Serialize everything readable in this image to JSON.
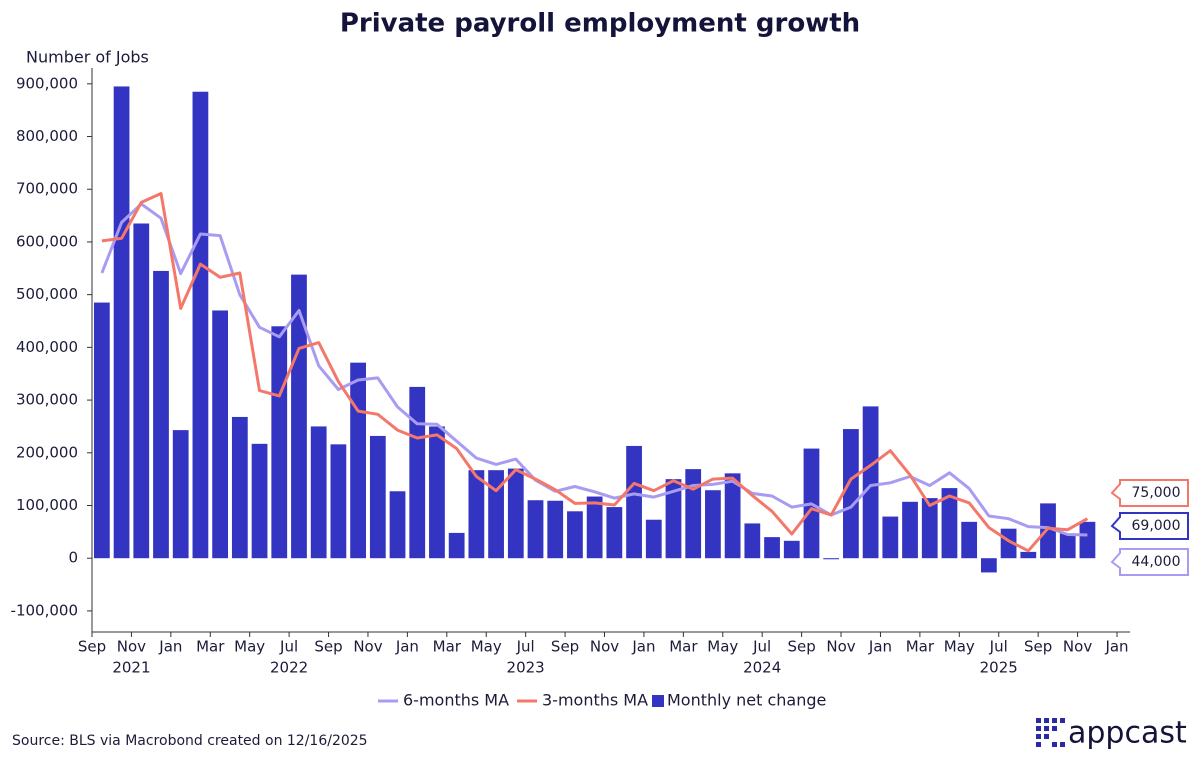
{
  "chart_data": {
    "type": "combo",
    "title": "Private payroll employment growth",
    "y_label": "Number of Jobs",
    "source": "Source: BLS via Macrobond created on 12/16/2025",
    "brand": "appcast",
    "x": [
      "2021-09",
      "2021-10",
      "2021-11",
      "2021-12",
      "2022-01",
      "2022-02",
      "2022-03",
      "2022-04",
      "2022-05",
      "2022-06",
      "2022-07",
      "2022-08",
      "2022-09",
      "2022-10",
      "2022-11",
      "2022-12",
      "2023-01",
      "2023-02",
      "2023-03",
      "2023-04",
      "2023-05",
      "2023-06",
      "2023-07",
      "2023-08",
      "2023-09",
      "2023-10",
      "2023-11",
      "2023-12",
      "2024-01",
      "2024-02",
      "2024-03",
      "2024-04",
      "2024-05",
      "2024-06",
      "2024-07",
      "2024-08",
      "2024-09",
      "2024-10",
      "2024-11",
      "2024-12",
      "2025-01",
      "2025-02",
      "2025-03",
      "2025-04",
      "2025-05",
      "2025-06",
      "2025-07",
      "2025-08",
      "2025-09",
      "2025-10",
      "2025-11"
    ],
    "xlim": [
      "2021-09",
      "2026-01"
    ],
    "xticks": [
      {
        "value": "2021-09",
        "label": "Sep"
      },
      {
        "value": "2021-11",
        "label": "Nov"
      },
      {
        "value": "2022-01",
        "label": "Jan"
      },
      {
        "value": "2022-03",
        "label": "Mar"
      },
      {
        "value": "2022-05",
        "label": "May"
      },
      {
        "value": "2022-07",
        "label": "Jul"
      },
      {
        "value": "2022-09",
        "label": "Sep"
      },
      {
        "value": "2022-11",
        "label": "Nov"
      },
      {
        "value": "2023-01",
        "label": "Jan"
      },
      {
        "value": "2023-03",
        "label": "Mar"
      },
      {
        "value": "2023-05",
        "label": "May"
      },
      {
        "value": "2023-07",
        "label": "Jul"
      },
      {
        "value": "2023-09",
        "label": "Sep"
      },
      {
        "value": "2023-11",
        "label": "Nov"
      },
      {
        "value": "2024-01",
        "label": "Jan"
      },
      {
        "value": "2024-03",
        "label": "Mar"
      },
      {
        "value": "2024-05",
        "label": "May"
      },
      {
        "value": "2024-07",
        "label": "Jul"
      },
      {
        "value": "2024-09",
        "label": "Sep"
      },
      {
        "value": "2024-11",
        "label": "Nov"
      },
      {
        "value": "2025-01",
        "label": "Jan"
      },
      {
        "value": "2025-03",
        "label": "Mar"
      },
      {
        "value": "2025-05",
        "label": "May"
      },
      {
        "value": "2025-07",
        "label": "Jul"
      },
      {
        "value": "2025-09",
        "label": "Sep"
      },
      {
        "value": "2025-11",
        "label": "Nov"
      },
      {
        "value": "2026-01",
        "label": "Jan"
      }
    ],
    "xtick_years": [
      {
        "value": "2021-11",
        "label": "2021"
      },
      {
        "value": "2022-07",
        "label": "2022"
      },
      {
        "value": "2023-07",
        "label": "2023"
      },
      {
        "value": "2024-07",
        "label": "2024"
      },
      {
        "value": "2025-07",
        "label": "2025"
      }
    ],
    "ylim": [
      -140000,
      930000
    ],
    "yticks": [
      {
        "value": -100000,
        "label": "-100,000"
      },
      0,
      {
        "value": 100000,
        "label": "100,000"
      },
      {
        "value": 200000,
        "label": "200,000"
      },
      {
        "value": 300000,
        "label": "300,000"
      },
      {
        "value": 400000,
        "label": "400,000"
      },
      {
        "value": 500000,
        "label": "500,000"
      },
      {
        "value": 600000,
        "label": "600,000"
      },
      {
        "value": 700000,
        "label": "700,000"
      },
      {
        "value": 800000,
        "label": "800,000"
      },
      {
        "value": 900000,
        "label": "900,000"
      }
    ],
    "grid": false,
    "series": [
      {
        "name": "6-months MA",
        "type": "line",
        "color": "#a89cf2",
        "values": [
          541000,
          637000,
          672000,
          645000,
          540000,
          615000,
          612000,
          500000,
          438000,
          420000,
          470000,
          365000,
          320000,
          338000,
          342000,
          287000,
          255000,
          254000,
          222000,
          190000,
          178000,
          188000,
          148000,
          127000,
          136000,
          126000,
          114000,
          122000,
          116000,
          127000,
          138000,
          140000,
          146000,
          123000,
          118000,
          97000,
          103000,
          82000,
          97000,
          138000,
          143000,
          155000,
          138000,
          162000,
          132000,
          80000,
          75000,
          60000,
          58000,
          45000,
          44000
        ],
        "last_label": "44,000"
      },
      {
        "name": "3-months MA",
        "type": "line",
        "color": "#f4786a",
        "values": [
          602000,
          607000,
          675000,
          692000,
          474000,
          558000,
          533000,
          541000,
          318000,
          308000,
          398000,
          409000,
          335000,
          279000,
          273000,
          243000,
          228000,
          234000,
          208000,
          155000,
          128000,
          168000,
          150000,
          130000,
          104000,
          105000,
          101000,
          142000,
          128000,
          147000,
          131000,
          150000,
          152000,
          119000,
          89000,
          46000,
          94000,
          82000,
          150000,
          176000,
          204000,
          158000,
          100000,
          118000,
          105000,
          58000,
          33000,
          14000,
          57000,
          54000,
          75000
        ],
        "last_label": "75,000"
      },
      {
        "name": "Monthly net change",
        "type": "bar",
        "color": "#3434c2",
        "values": [
          485000,
          895000,
          635000,
          545000,
          243000,
          885000,
          470000,
          268000,
          217000,
          440000,
          538000,
          250000,
          216000,
          371000,
          232000,
          127000,
          325000,
          250000,
          48000,
          167000,
          167000,
          170000,
          110000,
          109000,
          89000,
          117000,
          97000,
          213000,
          73000,
          150000,
          169000,
          129000,
          161000,
          66000,
          40000,
          33000,
          208000,
          -2000,
          245000,
          288000,
          79000,
          107000,
          114000,
          133000,
          69000,
          -27000,
          56000,
          12000,
          104000,
          47000,
          69000
        ],
        "last_label": "69,000"
      }
    ]
  }
}
